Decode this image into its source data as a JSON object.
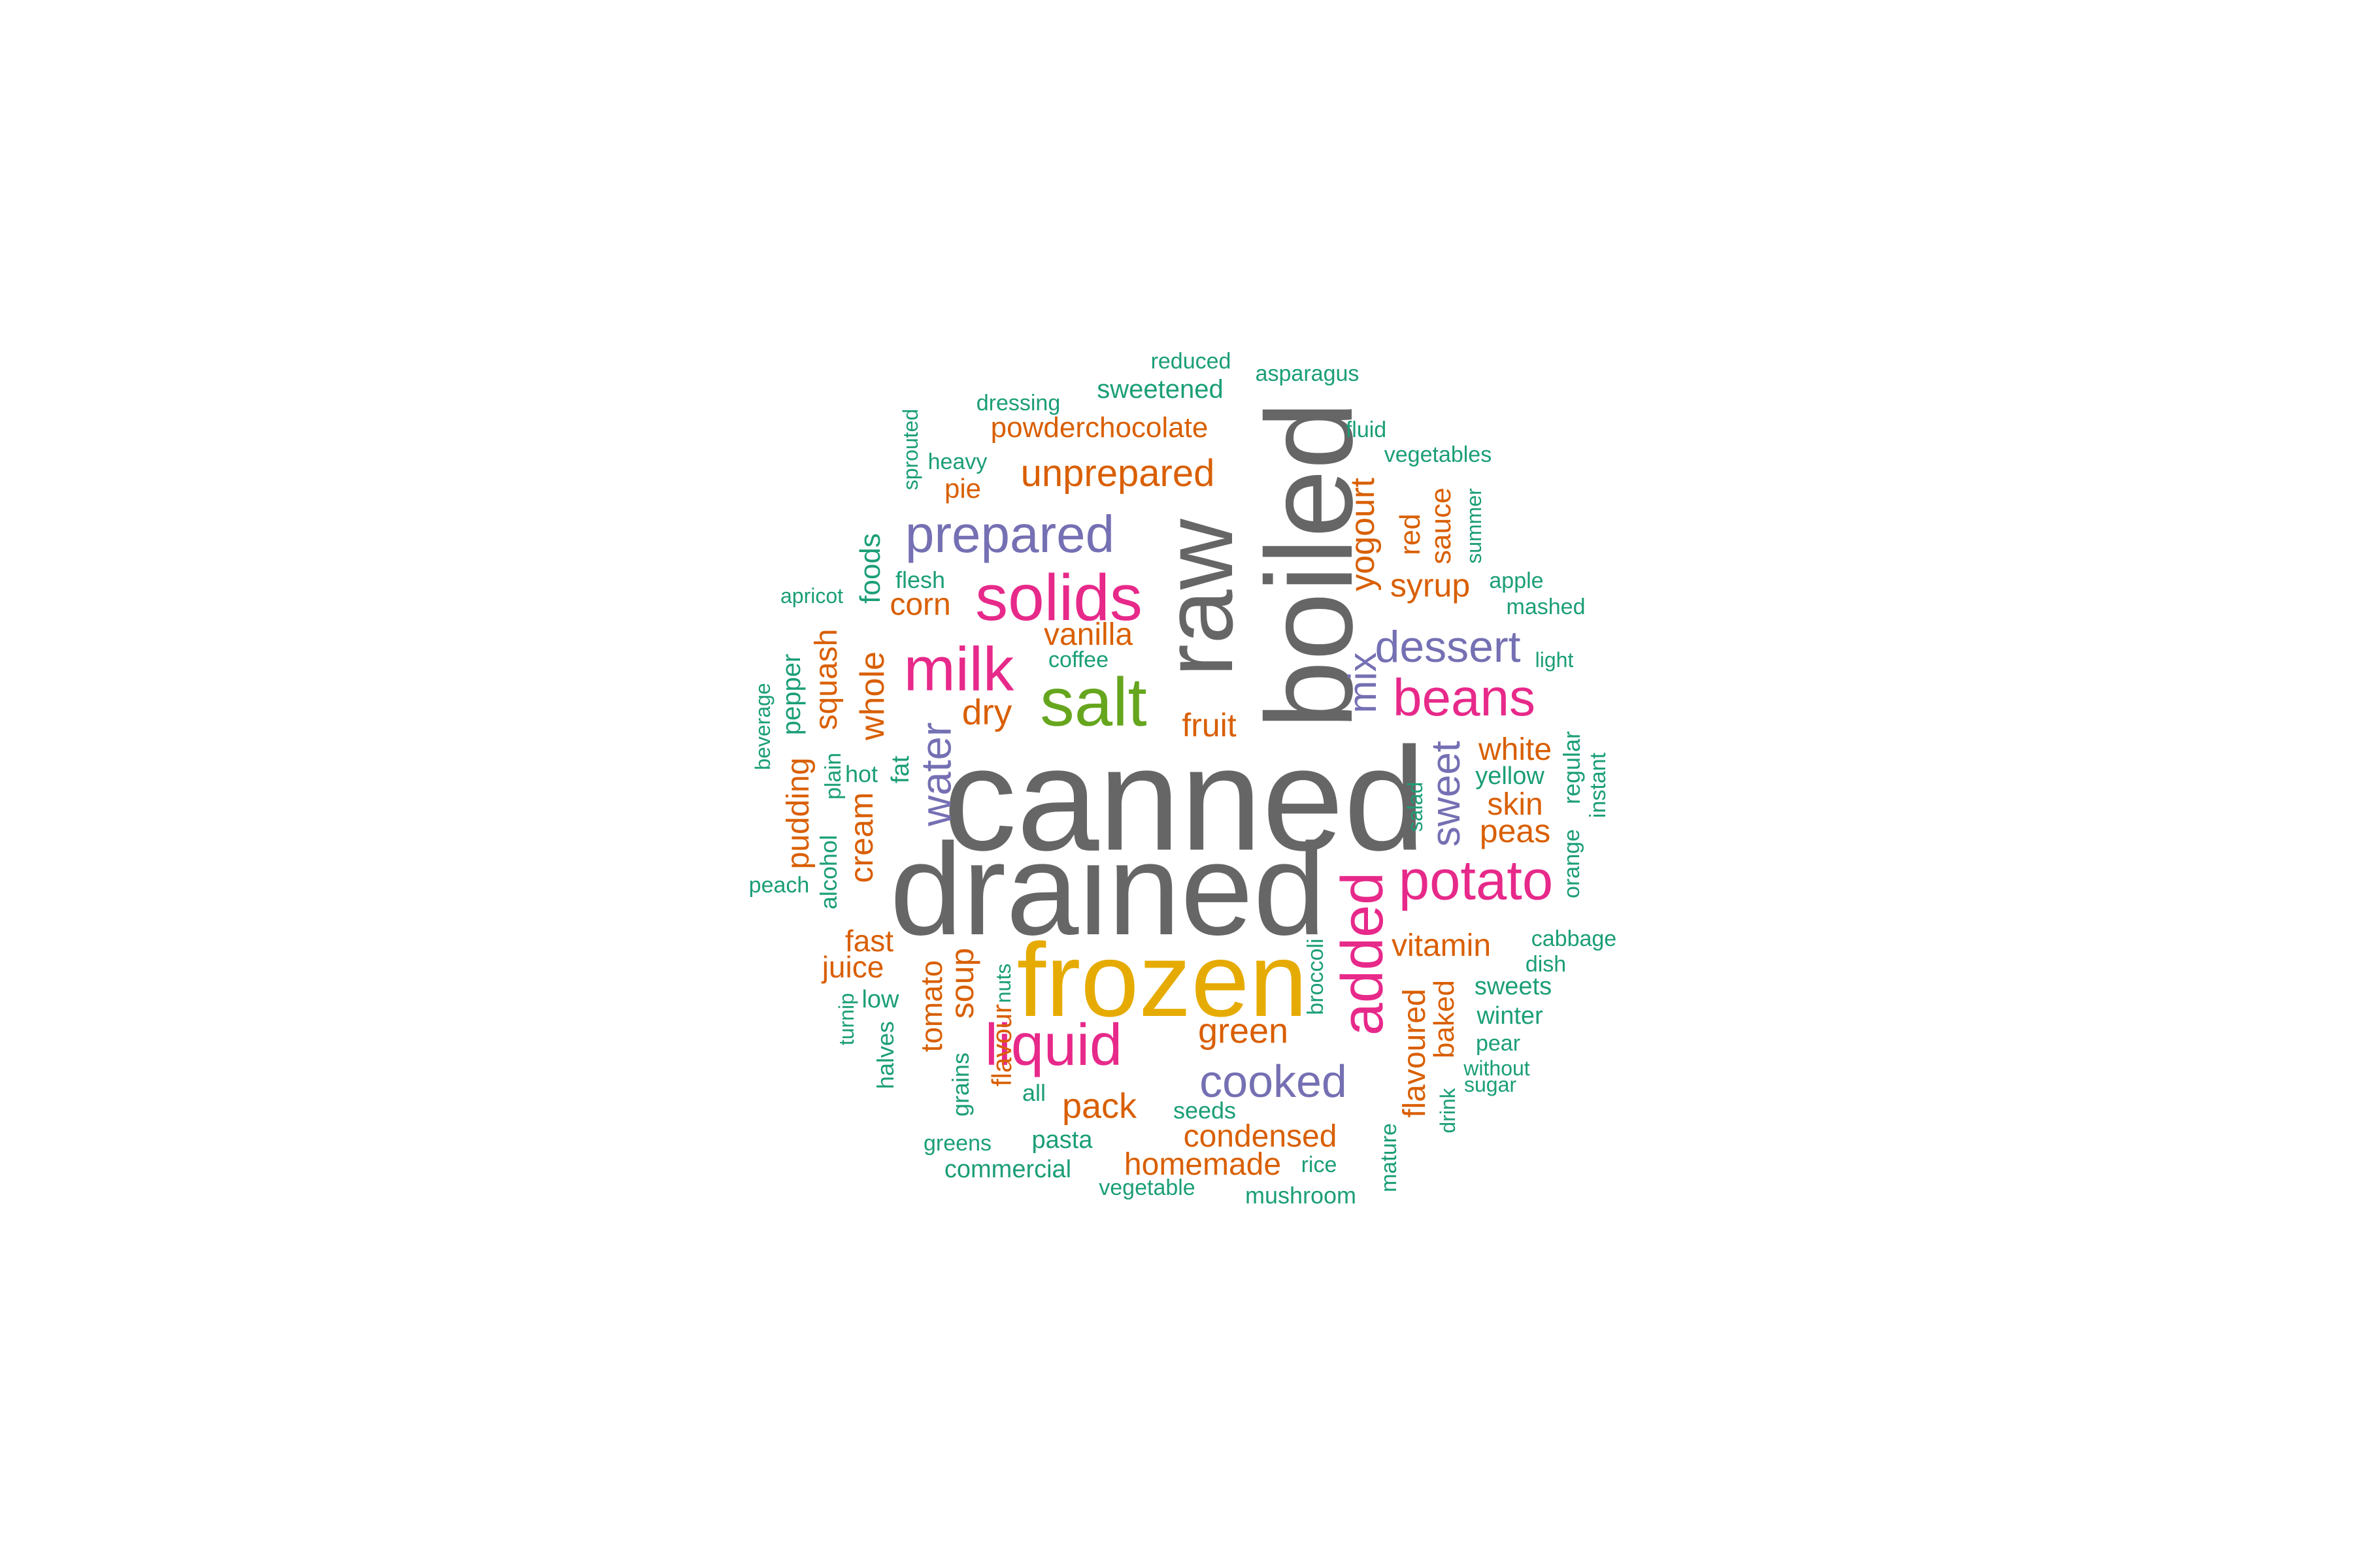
{
  "palette": {
    "dark_grey": "#666666",
    "teal": "#1b9e77",
    "orange": "#d95f02",
    "purple": "#7570b3",
    "pink": "#e7298a",
    "olive": "#66a61e",
    "gold": "#e6ab02"
  },
  "words": [
    {
      "text": "canned",
      "color": "dark_grey"
    },
    {
      "text": "drained",
      "color": "dark_grey"
    },
    {
      "text": "boiled",
      "color": "dark_grey"
    },
    {
      "text": "raw",
      "color": "dark_grey"
    },
    {
      "text": "frozen",
      "color": "gold"
    },
    {
      "text": "salt",
      "color": "olive"
    },
    {
      "text": "solids",
      "color": "pink"
    },
    {
      "text": "milk",
      "color": "pink"
    },
    {
      "text": "liquid",
      "color": "pink"
    },
    {
      "text": "added",
      "color": "pink"
    },
    {
      "text": "potato",
      "color": "pink"
    },
    {
      "text": "beans",
      "color": "pink"
    },
    {
      "text": "prepared",
      "color": "purple"
    },
    {
      "text": "cooked",
      "color": "purple"
    },
    {
      "text": "dessert",
      "color": "purple"
    },
    {
      "text": "water",
      "color": "purple"
    },
    {
      "text": "mix",
      "color": "purple"
    },
    {
      "text": "sweet",
      "color": "purple"
    },
    {
      "text": "unprepared",
      "color": "orange"
    },
    {
      "text": "powderchocolate",
      "color": "orange"
    },
    {
      "text": "yogourt",
      "color": "orange"
    },
    {
      "text": "sweetened",
      "color": "teal"
    },
    {
      "text": "reduced",
      "color": "teal"
    },
    {
      "text": "asparagus",
      "color": "teal"
    },
    {
      "text": "dressing",
      "color": "teal"
    },
    {
      "text": "fluid",
      "color": "teal"
    },
    {
      "text": "vegetables",
      "color": "teal"
    },
    {
      "text": "sprouted",
      "color": "teal"
    },
    {
      "text": "heavy",
      "color": "teal"
    },
    {
      "text": "pie",
      "color": "orange"
    },
    {
      "text": "red",
      "color": "orange"
    },
    {
      "text": "sauce",
      "color": "orange"
    },
    {
      "text": "summer",
      "color": "teal"
    },
    {
      "text": "syrup",
      "color": "orange"
    },
    {
      "text": "apple",
      "color": "teal"
    },
    {
      "text": "mashed",
      "color": "teal"
    },
    {
      "text": "foods",
      "color": "teal"
    },
    {
      "text": "flesh",
      "color": "teal"
    },
    {
      "text": "corn",
      "color": "orange"
    },
    {
      "text": "apricot",
      "color": "teal"
    },
    {
      "text": "vanilla",
      "color": "orange"
    },
    {
      "text": "coffee",
      "color": "teal"
    },
    {
      "text": "light",
      "color": "teal"
    },
    {
      "text": "squash",
      "color": "orange"
    },
    {
      "text": "whole",
      "color": "orange"
    },
    {
      "text": "dry",
      "color": "orange"
    },
    {
      "text": "fruit",
      "color": "orange"
    },
    {
      "text": "white",
      "color": "orange"
    },
    {
      "text": "beverage",
      "color": "teal"
    },
    {
      "text": "pepper",
      "color": "teal"
    },
    {
      "text": "pudding",
      "color": "orange"
    },
    {
      "text": "plain",
      "color": "teal"
    },
    {
      "text": "hot",
      "color": "teal"
    },
    {
      "text": "fat",
      "color": "teal"
    },
    {
      "text": "yellow",
      "color": "teal"
    },
    {
      "text": "regular",
      "color": "teal"
    },
    {
      "text": "instant",
      "color": "teal"
    },
    {
      "text": "skin",
      "color": "orange"
    },
    {
      "text": "salad",
      "color": "teal"
    },
    {
      "text": "cream",
      "color": "orange"
    },
    {
      "text": "alcohol",
      "color": "teal"
    },
    {
      "text": "peas",
      "color": "orange"
    },
    {
      "text": "orange",
      "color": "teal"
    },
    {
      "text": "peach",
      "color": "teal"
    },
    {
      "text": "fast",
      "color": "orange"
    },
    {
      "text": "juice",
      "color": "orange"
    },
    {
      "text": "vitamin",
      "color": "orange"
    },
    {
      "text": "cabbage",
      "color": "teal"
    },
    {
      "text": "dish",
      "color": "teal"
    },
    {
      "text": "soup",
      "color": "orange"
    },
    {
      "text": "tomato",
      "color": "orange"
    },
    {
      "text": "nuts",
      "color": "teal"
    },
    {
      "text": "broccoli",
      "color": "teal"
    },
    {
      "text": "sweets",
      "color": "teal"
    },
    {
      "text": "low",
      "color": "teal"
    },
    {
      "text": "turnip",
      "color": "teal"
    },
    {
      "text": "flavour",
      "color": "orange"
    },
    {
      "text": "green",
      "color": "orange"
    },
    {
      "text": "flavoured",
      "color": "orange"
    },
    {
      "text": "baked",
      "color": "orange"
    },
    {
      "text": "winter",
      "color": "teal"
    },
    {
      "text": "halves",
      "color": "teal"
    },
    {
      "text": "grains",
      "color": "teal"
    },
    {
      "text": "all",
      "color": "teal"
    },
    {
      "text": "pear",
      "color": "teal"
    },
    {
      "text": "without",
      "color": "teal"
    },
    {
      "text": "sugar",
      "color": "teal"
    },
    {
      "text": "pack",
      "color": "orange"
    },
    {
      "text": "seeds",
      "color": "teal"
    },
    {
      "text": "drink",
      "color": "teal"
    },
    {
      "text": "condensed",
      "color": "orange"
    },
    {
      "text": "greens",
      "color": "teal"
    },
    {
      "text": "pasta",
      "color": "teal"
    },
    {
      "text": "mature",
      "color": "teal"
    },
    {
      "text": "homemade",
      "color": "orange"
    },
    {
      "text": "rice",
      "color": "teal"
    },
    {
      "text": "commercial",
      "color": "teal"
    },
    {
      "text": "vegetable",
      "color": "teal"
    },
    {
      "text": "mushroom",
      "color": "teal"
    }
  ]
}
